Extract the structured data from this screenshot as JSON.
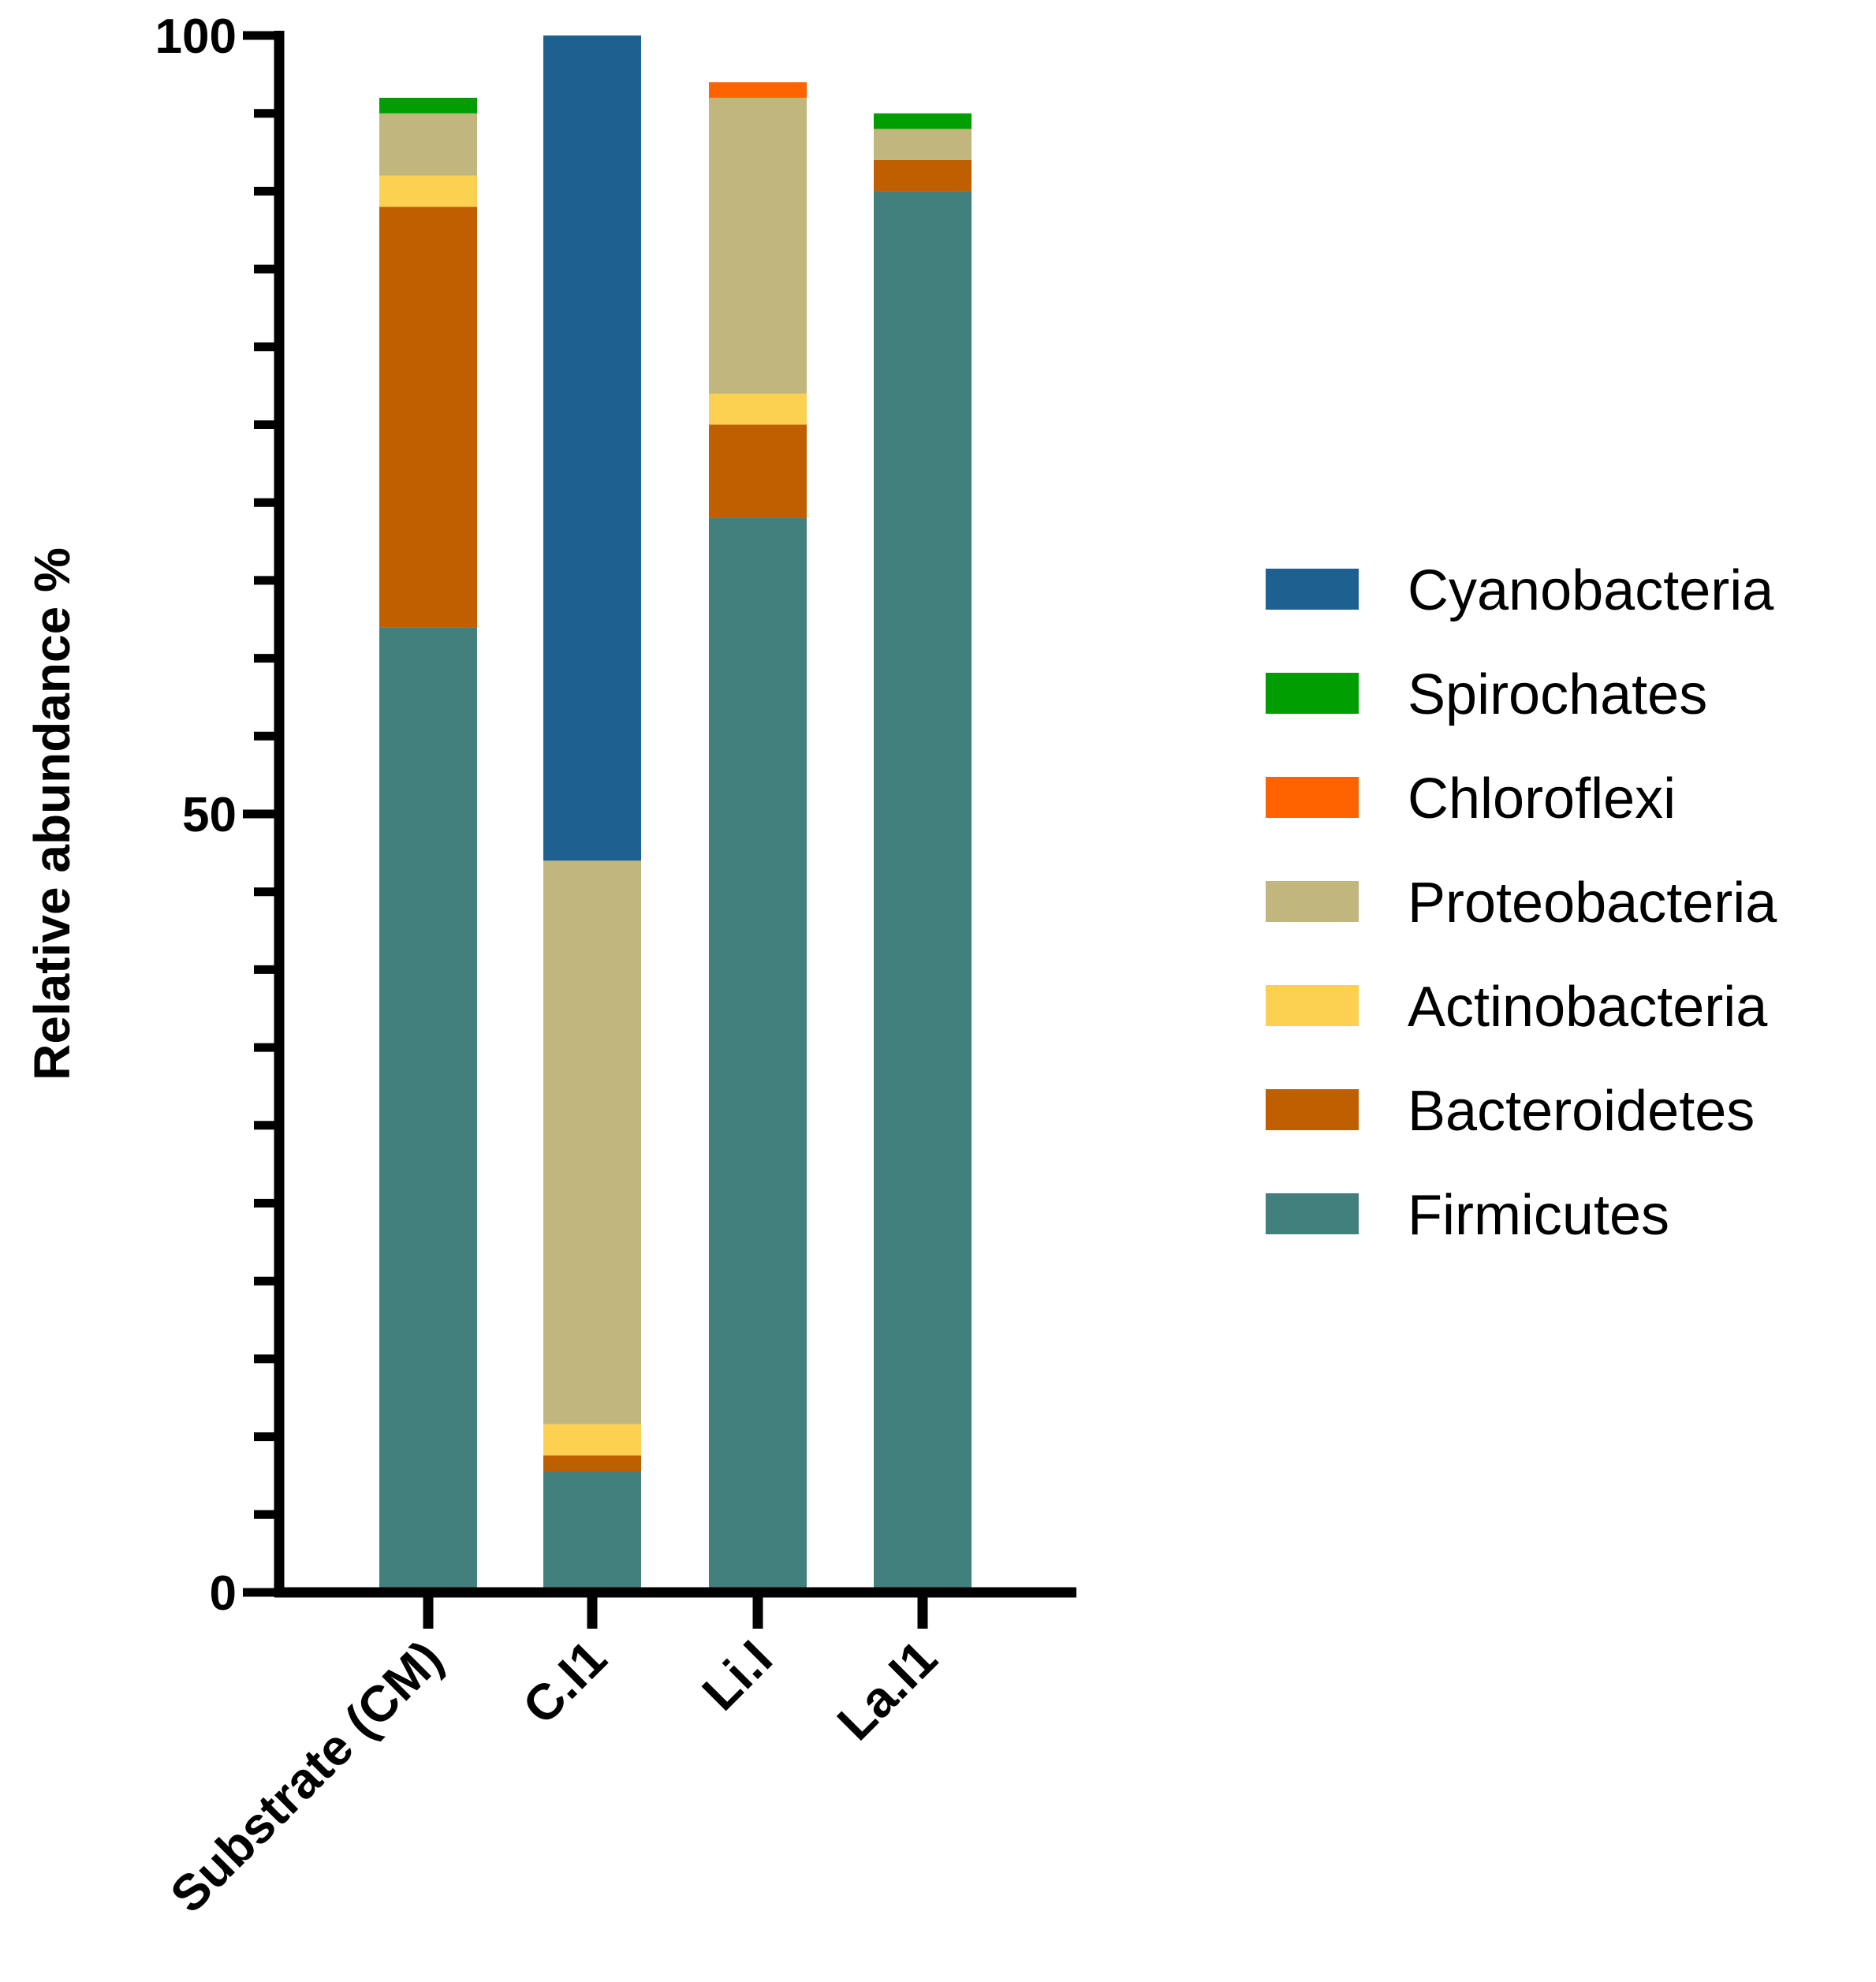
{
  "chart_data": {
    "type": "bar",
    "stacked": true,
    "title": "",
    "xlabel": "",
    "ylabel": "Relative abundance %",
    "ylim": [
      0,
      100
    ],
    "y_tick_labels": [
      "0",
      "50",
      "100"
    ],
    "y_tick_values": [
      0,
      50,
      100
    ],
    "y_minor_step": 5,
    "categories": [
      "Substrate (CM)",
      "C.I1",
      "Li.I",
      "La.I1"
    ],
    "legend_position": "right",
    "series": [
      {
        "name": "Firmicutes",
        "color": "#41807D",
        "values": [
          62.0,
          7.8,
          69.0,
          90.0
        ]
      },
      {
        "name": "Bacteroidetes",
        "color": "#BF5F00",
        "values": [
          27.0,
          1.0,
          6.0,
          2.0
        ]
      },
      {
        "name": "Actinobacteria",
        "color": "#FCD151",
        "values": [
          2.0,
          2.0,
          2.0,
          0.0
        ]
      },
      {
        "name": "Proteobacteria",
        "color": "#C1B67D",
        "values": [
          4.0,
          36.2,
          19.0,
          2.0
        ]
      },
      {
        "name": "Chloroflexi",
        "color": "#FF6300",
        "values": [
          0.0,
          0.0,
          1.0,
          0.0
        ]
      },
      {
        "name": "Spirochates",
        "color": "#009E00",
        "values": [
          1.0,
          0.0,
          0.0,
          1.0
        ]
      },
      {
        "name": "Cyanobacteria",
        "color": "#1E6190",
        "values": [
          0.0,
          53.0,
          0.0,
          0.0
        ]
      }
    ],
    "legend_order": [
      "Cyanobacteria",
      "Spirochates",
      "Chloroflexi",
      "Proteobacteria",
      "Actinobacteria",
      "Bacteroidetes",
      "Firmicutes"
    ]
  }
}
